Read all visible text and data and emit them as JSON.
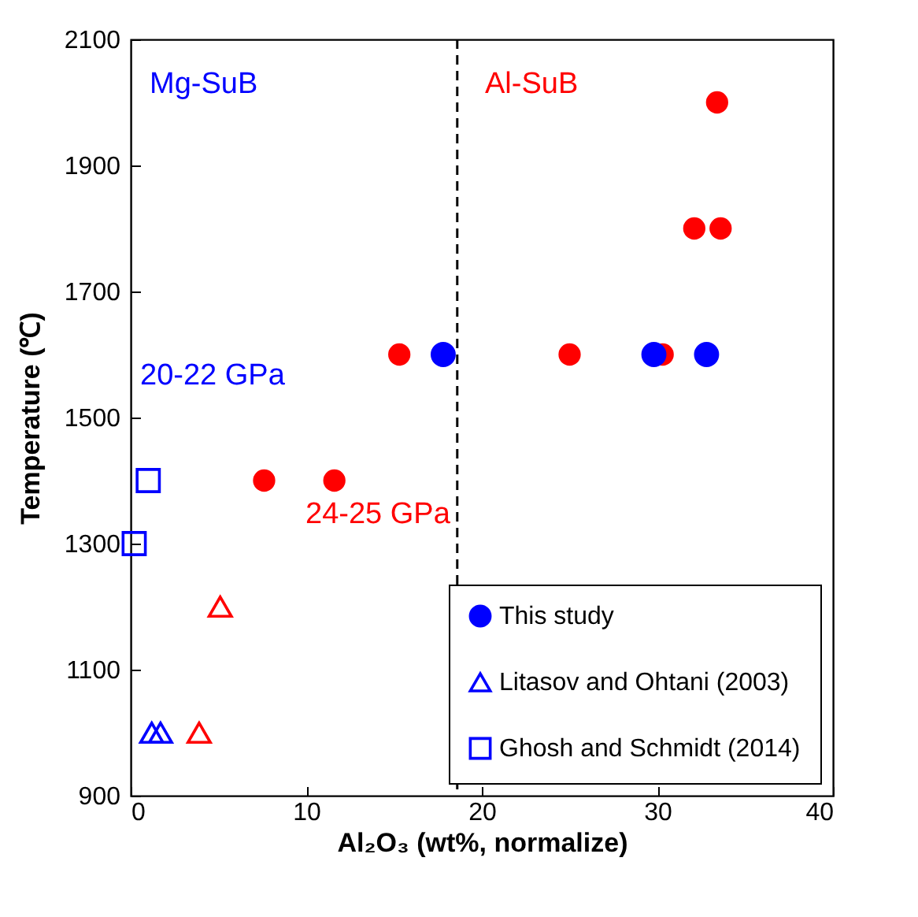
{
  "chart_data": {
    "type": "scatter",
    "xlabel": "Al₂O₃ (wt%, normalize)",
    "ylabel": "Temperature (℃)",
    "xlim": [
      0,
      40
    ],
    "xticks": [
      0,
      10,
      20,
      30,
      40
    ],
    "ylim": [
      900,
      2100
    ],
    "yticks": [
      900,
      1100,
      1300,
      1500,
      1700,
      1900,
      2100
    ],
    "grid": false,
    "legend": "bottom right",
    "series": [
      {
        "name": "This study",
        "color": "#0000ff",
        "marker": "circle",
        "x": [
          17.8,
          29.8,
          32.8
        ],
        "values": [
          1600,
          1600,
          1600
        ]
      },
      {
        "color": "#ff0000",
        "marker": "circle",
        "x": [
          7.6,
          11.6,
          15.3,
          25.0,
          30.3,
          32.1,
          33.6,
          33.4
        ],
        "values": [
          1400,
          1400,
          1600,
          1600,
          1600,
          1800,
          1800,
          2000
        ]
      },
      {
        "name": "Litasov and Ohtani (2003)",
        "color": "#0000ff",
        "marker": "triangle",
        "x": [
          1.2,
          1.7
        ],
        "values": [
          1000,
          1000
        ]
      },
      {
        "color": "#ff0000",
        "marker": "triangle",
        "x": [
          5.1,
          3.9
        ],
        "values": [
          1200,
          1000
        ]
      },
      {
        "name": "Ghosh and Schmidt (2014)",
        "color": "#0000ff",
        "marker": "square",
        "x": [
          1.0,
          0.2
        ],
        "values": [
          1400,
          1300
        ]
      }
    ],
    "ref_lines": [
      {
        "axis": "x",
        "value": 18.6,
        "color": "#000000",
        "line_style": "dashed"
      }
    ],
    "annotations": [
      "Mg-SuB",
      "Al-SuB",
      "20-22 GPa",
      "24-25 GPa"
    ]
  }
}
